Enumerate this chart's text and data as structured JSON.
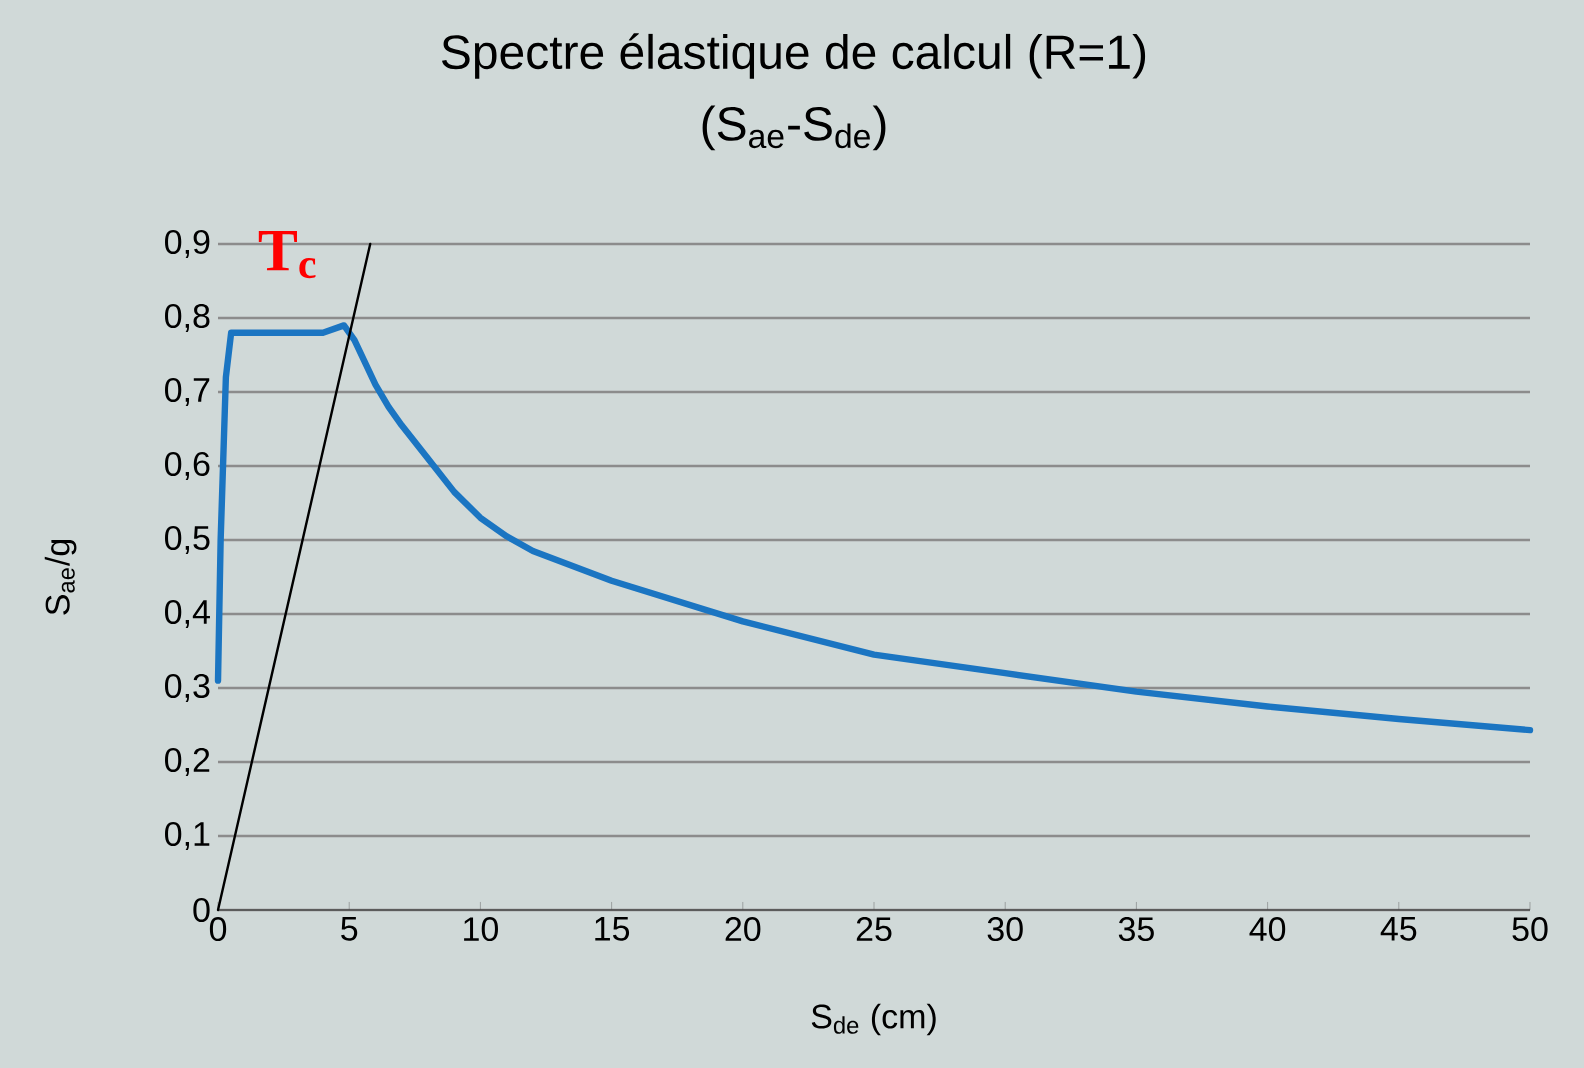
{
  "chart_data": {
    "type": "line",
    "title": "Spectre élastique de calcul (R=1)",
    "subtitle": "(S$_{ae}$-S$_{de}$)",
    "xlabel": "S$_{de}$ (cm)",
    "ylabel": "S$_{ae}$/g",
    "xlim": [
      0,
      50
    ],
    "ylim": [
      0,
      0.9
    ],
    "xticks": [
      0,
      5,
      10,
      15,
      20,
      25,
      30,
      35,
      40,
      45,
      50
    ],
    "yticks": [
      0,
      {
        "value": 0.1,
        "label": "0,1"
      },
      {
        "value": 0.2,
        "label": "0,2"
      },
      {
        "value": 0.3,
        "label": "0,3"
      },
      {
        "value": 0.4,
        "label": "0,4"
      },
      {
        "value": 0.5,
        "label": "0,5"
      },
      {
        "value": 0.6,
        "label": "0,6"
      },
      {
        "value": 0.7,
        "label": "0,7"
      },
      {
        "value": 0.8,
        "label": "0,8"
      },
      {
        "value": 0.9,
        "label": "0,9"
      }
    ],
    "grid": "y",
    "marker": "none",
    "line_style": "solid",
    "series": [
      {
        "color": "#1b75c2",
        "x": [
          0,
          0.1,
          0.3,
          0.5,
          1,
          2,
          3,
          4,
          4.8,
          5.2,
          5.6,
          6,
          6.5,
          7,
          8,
          9,
          10,
          11,
          12,
          15,
          20,
          25,
          30,
          35,
          40,
          45,
          50
        ],
        "values": [
          0.31,
          0.5,
          0.72,
          0.78,
          0.78,
          0.78,
          0.78,
          0.78,
          0.79,
          0.77,
          0.74,
          0.71,
          0.68,
          0.655,
          0.61,
          0.565,
          0.53,
          0.505,
          0.485,
          0.445,
          0.39,
          0.345,
          0.32,
          0.295,
          0.275,
          0.258,
          0.243
        ]
      },
      {
        "color": "#000000",
        "x": [
          0,
          5.8
        ],
        "values": [
          0,
          0.9
        ]
      }
    ],
    "annotations": [
      "T$_{c}$"
    ]
  }
}
